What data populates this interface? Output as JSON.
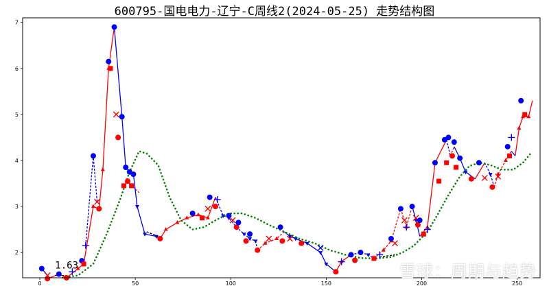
{
  "chart_data": {
    "type": "line",
    "title": "600795-国电电力-辽宁-C周线2(2024-05-25) 走势结构图",
    "xlabel": "",
    "ylabel": "",
    "xlim": [
      -9,
      262
    ],
    "ylim": [
      1.45,
      7.1
    ],
    "x_ticks": [
      0,
      50,
      100,
      150,
      200,
      250
    ],
    "y_ticks": [
      2,
      3,
      4,
      5,
      6,
      7
    ],
    "grid": false,
    "annotation": {
      "text": "1.63",
      "x": 8,
      "y": 1.65
    },
    "colors": {
      "up": "#ff0000",
      "down": "#0000ff",
      "ma": "#008000",
      "black": "#000000"
    },
    "series": [
      {
        "style": "price-up-segments",
        "color": "#ff0000",
        "segments": [
          [
            [
              4,
              1.43
            ],
            [
              10,
              1.53
            ],
            [
              14,
              1.45
            ],
            [
              20,
              1.65
            ],
            [
              23,
              1.75
            ],
            [
              28,
              3.0
            ],
            [
              31,
              2.95
            ],
            [
              33,
              3.8
            ],
            [
              36,
              6.0
            ],
            [
              39,
              6.9
            ]
          ],
          [
            [
              44,
              3.45
            ],
            [
              46,
              3.55
            ],
            [
              48,
              3.45
            ],
            [
              52,
              3.3
            ]
          ],
          [
            [
              63,
              2.3
            ],
            [
              66,
              2.5
            ],
            [
              72,
              2.65
            ],
            [
              77,
              2.75
            ],
            [
              83,
              2.82
            ],
            [
              88,
              2.75
            ],
            [
              92,
              3.2
            ]
          ],
          [
            [
              114,
              2.05
            ],
            [
              118,
              2.2
            ],
            [
              124,
              2.3
            ],
            [
              128,
              2.45
            ]
          ],
          [
            [
              155,
              1.58
            ],
            [
              158,
              1.8
            ],
            [
              163,
              1.95
            ]
          ],
          [
            [
              175,
              1.87
            ],
            [
              180,
              2.05
            ],
            [
              184,
              2.25
            ],
            [
              189,
              2.95
            ],
            [
              192,
              2.55
            ],
            [
              195,
              3.0
            ]
          ],
          [
            [
              199,
              2.35
            ],
            [
              203,
              2.55
            ],
            [
              207,
              3.95
            ],
            [
              213,
              4.45
            ]
          ],
          [
            [
              215,
              4.1
            ],
            [
              217,
              4.3
            ]
          ],
          [
            [
              228,
              3.6
            ],
            [
              233,
              3.95
            ]
          ],
          [
            [
              238,
              3.42
            ],
            [
              240,
              3.7
            ],
            [
              244,
              4.0
            ],
            [
              247,
              4.2
            ]
          ],
          [
            [
              249,
              4.1
            ],
            [
              251,
              4.7
            ],
            [
              253,
              4.95
            ],
            [
              256,
              4.95
            ],
            [
              258,
              5.3
            ]
          ]
        ]
      },
      {
        "style": "price-down-segments",
        "color": "#0000ff",
        "segments": [
          [
            [
              1,
              1.65
            ],
            [
              4,
              1.5
            ]
          ],
          [
            [
              24,
              2.15
            ],
            [
              28,
              4.1
            ],
            [
              30,
              3.1
            ]
          ],
          [
            [
              39,
              6.9
            ],
            [
              43,
              4.95
            ],
            [
              45,
              3.85
            ],
            [
              47,
              3.75
            ],
            [
              49,
              3.7
            ],
            [
              51,
              3.0
            ],
            [
              55,
              2.4
            ],
            [
              61,
              2.35
            ],
            [
              63,
              2.3
            ]
          ],
          [
            [
              92,
              3.2
            ],
            [
              96,
              2.8
            ],
            [
              99,
              2.75
            ],
            [
              103,
              2.55
            ],
            [
              107,
              2.4
            ],
            [
              110,
              2.3
            ],
            [
              113,
              2.25
            ],
            [
              114,
              2.05
            ]
          ],
          [
            [
              128,
              2.45
            ],
            [
              131,
              2.35
            ],
            [
              134,
              2.3
            ],
            [
              140,
              2.2
            ],
            [
              147,
              2.0
            ],
            [
              150,
              1.75
            ],
            [
              155,
              1.58
            ]
          ],
          [
            [
              163,
              1.95
            ],
            [
              168,
              2.0
            ],
            [
              172,
              1.95
            ],
            [
              175,
              1.87
            ]
          ],
          [
            [
              195,
              3.0
            ],
            [
              197,
              2.7
            ],
            [
              199,
              2.35
            ]
          ],
          [
            [
              213,
              4.45
            ],
            [
              215,
              4.1
            ]
          ],
          [
            [
              217,
              4.3
            ],
            [
              220,
              4.05
            ],
            [
              223,
              3.75
            ],
            [
              228,
              3.6
            ]
          ],
          [
            [
              233,
              3.95
            ],
            [
              236,
              3.7
            ],
            [
              238,
              3.42
            ]
          ],
          [
            [
              247,
              4.2
            ],
            [
              249,
              4.1
            ]
          ]
        ]
      },
      {
        "style": "moving-average-dots",
        "color": "#008000",
        "points": [
          [
            12,
            1.45
          ],
          [
            20,
            1.5
          ],
          [
            28,
            1.75
          ],
          [
            35,
            2.4
          ],
          [
            42,
            3.15
          ],
          [
            47,
            3.75
          ],
          [
            52,
            4.2
          ],
          [
            56,
            4.15
          ],
          [
            62,
            3.9
          ],
          [
            68,
            3.2
          ],
          [
            74,
            2.7
          ],
          [
            80,
            2.5
          ],
          [
            86,
            2.55
          ],
          [
            92,
            2.7
          ],
          [
            99,
            2.85
          ],
          [
            106,
            2.85
          ],
          [
            113,
            2.75
          ],
          [
            120,
            2.6
          ],
          [
            128,
            2.45
          ],
          [
            136,
            2.3
          ],
          [
            144,
            2.2
          ],
          [
            152,
            2.05
          ],
          [
            160,
            1.95
          ],
          [
            168,
            1.88
          ],
          [
            176,
            1.87
          ],
          [
            184,
            1.9
          ],
          [
            190,
            2.0
          ],
          [
            196,
            2.15
          ],
          [
            203,
            2.45
          ],
          [
            208,
            2.8
          ],
          [
            214,
            3.25
          ],
          [
            220,
            3.65
          ],
          [
            225,
            3.88
          ],
          [
            230,
            3.95
          ],
          [
            236,
            3.9
          ],
          [
            242,
            3.8
          ],
          [
            248,
            3.8
          ],
          [
            253,
            3.95
          ],
          [
            257,
            4.15
          ]
        ]
      },
      {
        "style": "black-dashed",
        "color": "#000000",
        "segments": [
          [
            [
              8,
              1.5
            ],
            [
              14,
              1.5
            ]
          ],
          [
            [
              56,
              2.45
            ],
            [
              62,
              2.35
            ]
          ],
          [
            [
              178,
              1.9
            ],
            [
              186,
              1.95
            ]
          ]
        ]
      }
    ],
    "markers": [
      {
        "x": 1,
        "y": 1.65,
        "m": "circle",
        "c": "#0000ff"
      },
      {
        "x": 4,
        "y": 1.5,
        "m": "x",
        "c": "#ff0000"
      },
      {
        "x": 4,
        "y": 1.43,
        "m": "circle",
        "c": "#ff0000"
      },
      {
        "x": 10,
        "y": 1.53,
        "m": "circle",
        "c": "#0000ff"
      },
      {
        "x": 14,
        "y": 1.45,
        "m": "circle",
        "c": "#ff0000"
      },
      {
        "x": 17,
        "y": 1.58,
        "m": "plus",
        "c": "#0000ff"
      },
      {
        "x": 22,
        "y": 1.82,
        "m": "circle",
        "c": "#0000ff"
      },
      {
        "x": 23,
        "y": 1.75,
        "m": "square",
        "c": "#ff0000"
      },
      {
        "x": 24,
        "y": 2.15,
        "m": "plus",
        "c": "#0000ff"
      },
      {
        "x": 28,
        "y": 4.1,
        "m": "circle",
        "c": "#0000ff"
      },
      {
        "x": 30,
        "y": 3.1,
        "m": "x",
        "c": "#ff0000"
      },
      {
        "x": 31,
        "y": 2.95,
        "m": "circle",
        "c": "#ff0000"
      },
      {
        "x": 36,
        "y": 6.15,
        "m": "circle",
        "c": "#0000ff"
      },
      {
        "x": 37,
        "y": 6.0,
        "m": "square",
        "c": "#ff0000"
      },
      {
        "x": 39,
        "y": 6.9,
        "m": "circle",
        "c": "#0000ff"
      },
      {
        "x": 40,
        "y": 5.0,
        "m": "x",
        "c": "#ff0000"
      },
      {
        "x": 41,
        "y": 4.5,
        "m": "circle",
        "c": "#ff0000"
      },
      {
        "x": 43,
        "y": 4.95,
        "m": "circle",
        "c": "#0000ff"
      },
      {
        "x": 44,
        "y": 3.45,
        "m": "square",
        "c": "#ff0000"
      },
      {
        "x": 45,
        "y": 3.85,
        "m": "circle",
        "c": "#0000ff"
      },
      {
        "x": 46,
        "y": 3.55,
        "m": "circle",
        "c": "#ff0000"
      },
      {
        "x": 47,
        "y": 3.75,
        "m": "circle",
        "c": "#0000ff"
      },
      {
        "x": 48,
        "y": 3.45,
        "m": "square",
        "c": "#ff0000"
      },
      {
        "x": 49,
        "y": 3.7,
        "m": "circle",
        "c": "#0000ff"
      },
      {
        "x": 63,
        "y": 2.3,
        "m": "circle",
        "c": "#ff0000"
      },
      {
        "x": 80,
        "y": 2.85,
        "m": "circle",
        "c": "#0000ff"
      },
      {
        "x": 85,
        "y": 2.75,
        "m": "square",
        "c": "#ff0000"
      },
      {
        "x": 88,
        "y": 2.95,
        "m": "x",
        "c": "#ff0000"
      },
      {
        "x": 89,
        "y": 3.2,
        "m": "circle",
        "c": "#0000ff"
      },
      {
        "x": 92,
        "y": 3.0,
        "m": "circle",
        "c": "#ff0000"
      },
      {
        "x": 93,
        "y": 3.15,
        "m": "plus",
        "c": "#0000ff"
      },
      {
        "x": 99,
        "y": 2.8,
        "m": "circle",
        "c": "#0000ff"
      },
      {
        "x": 101,
        "y": 2.7,
        "m": "x",
        "c": "#ff0000"
      },
      {
        "x": 103,
        "y": 2.55,
        "m": "circle",
        "c": "#ff0000"
      },
      {
        "x": 104,
        "y": 2.65,
        "m": "circle",
        "c": "#0000ff"
      },
      {
        "x": 108,
        "y": 2.25,
        "m": "circle",
        "c": "#ff0000"
      },
      {
        "x": 110,
        "y": 2.4,
        "m": "circle",
        "c": "#0000ff"
      },
      {
        "x": 114,
        "y": 2.05,
        "m": "circle",
        "c": "#ff0000"
      },
      {
        "x": 120,
        "y": 2.3,
        "m": "x",
        "c": "#ff0000"
      },
      {
        "x": 126,
        "y": 2.55,
        "m": "circle",
        "c": "#0000ff"
      },
      {
        "x": 127,
        "y": 2.25,
        "m": "circle",
        "c": "#ff0000"
      },
      {
        "x": 131,
        "y": 2.3,
        "m": "x",
        "c": "#ff0000"
      },
      {
        "x": 137,
        "y": 2.2,
        "m": "circle",
        "c": "#ff0000"
      },
      {
        "x": 147,
        "y": 2.1,
        "m": "x",
        "c": "#0000ff"
      },
      {
        "x": 155,
        "y": 1.58,
        "m": "circle",
        "c": "#ff0000"
      },
      {
        "x": 158,
        "y": 1.8,
        "m": "plus",
        "c": "#0000ff"
      },
      {
        "x": 163,
        "y": 1.95,
        "m": "circle",
        "c": "#0000ff"
      },
      {
        "x": 165,
        "y": 1.83,
        "m": "circle",
        "c": "#ff0000"
      },
      {
        "x": 168,
        "y": 2.0,
        "m": "circle",
        "c": "#0000ff"
      },
      {
        "x": 175,
        "y": 1.87,
        "m": "square",
        "c": "#ff0000"
      },
      {
        "x": 178,
        "y": 1.95,
        "m": "plus",
        "c": "#0000ff"
      },
      {
        "x": 184,
        "y": 2.3,
        "m": "circle",
        "c": "#0000ff"
      },
      {
        "x": 186,
        "y": 2.2,
        "m": "x",
        "c": "#ff0000"
      },
      {
        "x": 189,
        "y": 2.95,
        "m": "circle",
        "c": "#0000ff"
      },
      {
        "x": 191,
        "y": 2.7,
        "m": "x",
        "c": "#ff0000"
      },
      {
        "x": 192,
        "y": 2.55,
        "m": "plus",
        "c": "#0000ff"
      },
      {
        "x": 195,
        "y": 3.0,
        "m": "circle",
        "c": "#0000ff"
      },
      {
        "x": 197,
        "y": 2.75,
        "m": "x",
        "c": "#ff0000"
      },
      {
        "x": 198,
        "y": 2.6,
        "m": "circle",
        "c": "#ff0000"
      },
      {
        "x": 199,
        "y": 2.7,
        "m": "circle",
        "c": "#0000ff"
      },
      {
        "x": 201,
        "y": 2.4,
        "m": "square",
        "c": "#ff0000"
      },
      {
        "x": 203,
        "y": 2.5,
        "m": "plus",
        "c": "#0000ff"
      },
      {
        "x": 207,
        "y": 3.95,
        "m": "circle",
        "c": "#0000ff"
      },
      {
        "x": 209,
        "y": 3.55,
        "m": "square",
        "c": "#ff0000"
      },
      {
        "x": 212,
        "y": 4.45,
        "m": "circle",
        "c": "#0000ff"
      },
      {
        "x": 213,
        "y": 3.95,
        "m": "square",
        "c": "#ff0000"
      },
      {
        "x": 214,
        "y": 4.5,
        "m": "circle",
        "c": "#0000ff"
      },
      {
        "x": 216,
        "y": 4.1,
        "m": "circle",
        "c": "#ff0000"
      },
      {
        "x": 217,
        "y": 4.4,
        "m": "circle",
        "c": "#0000ff"
      },
      {
        "x": 218,
        "y": 3.85,
        "m": "square",
        "c": "#ff0000"
      },
      {
        "x": 220,
        "y": 4.05,
        "m": "circle",
        "c": "#0000ff"
      },
      {
        "x": 226,
        "y": 3.6,
        "m": "circle",
        "c": "#ff0000"
      },
      {
        "x": 230,
        "y": 3.95,
        "m": "circle",
        "c": "#0000ff"
      },
      {
        "x": 233,
        "y": 3.62,
        "m": "x",
        "c": "#ff0000"
      },
      {
        "x": 237,
        "y": 3.42,
        "m": "circle",
        "c": "#ff0000"
      },
      {
        "x": 240,
        "y": 3.65,
        "m": "x",
        "c": "#ff0000"
      },
      {
        "x": 245,
        "y": 4.3,
        "m": "circle",
        "c": "#0000ff"
      },
      {
        "x": 246,
        "y": 4.1,
        "m": "square",
        "c": "#ff0000"
      },
      {
        "x": 247,
        "y": 4.5,
        "m": "plus",
        "c": "#0000ff"
      },
      {
        "x": 252,
        "y": 5.3,
        "m": "circle",
        "c": "#0000ff"
      },
      {
        "x": 254,
        "y": 5.0,
        "m": "square",
        "c": "#ff0000"
      }
    ]
  },
  "watermark": "雪球：周期与趋势"
}
